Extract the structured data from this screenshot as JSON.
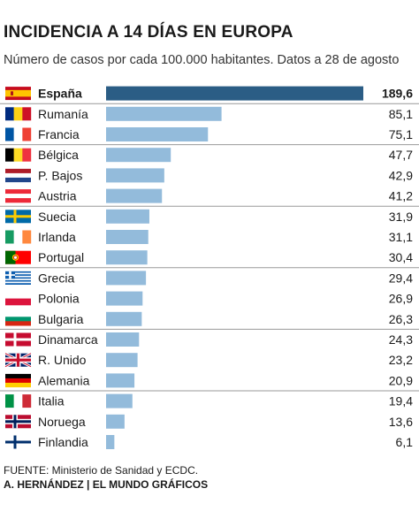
{
  "title": "INCIDENCIA A 14 DÍAS EN EUROPA",
  "subtitle": "Número de casos por cada 100.000 habitantes. Datos a 28 de agosto",
  "footer": {
    "source": "FUENTE: Ministerio de Sanidad y ECDC.",
    "credit": "A. HERNÁNDEZ | EL MUNDO GRÁFICOS"
  },
  "colors": {
    "highlight_bar": "#2b5d85",
    "bar": "#93bbdb",
    "separator": "#999999"
  },
  "chart_data": {
    "type": "bar",
    "orientation": "horizontal",
    "categories": [
      "España",
      "Rumanía",
      "Francia",
      "Bélgica",
      "P. Bajos",
      "Austria",
      "Suecia",
      "Irlanda",
      "Portugal",
      "Grecia",
      "Polonia",
      "Bulgaria",
      "Dinamarca",
      "R. Unido",
      "Alemania",
      "Italia",
      "Noruega",
      "Finlandia"
    ],
    "values": [
      189.6,
      85.1,
      75.1,
      47.7,
      42.9,
      41.2,
      31.9,
      31.1,
      30.4,
      29.4,
      26.9,
      26.3,
      24.3,
      23.2,
      20.9,
      19.4,
      13.6,
      6.1
    ],
    "value_labels": [
      "189,6",
      "85,1",
      "75,1",
      "47,7",
      "42,9",
      "41,2",
      "31,9",
      "31,1",
      "30,4",
      "29,4",
      "26,9",
      "26,3",
      "24,3",
      "23,2",
      "20,9",
      "19,4",
      "13,6",
      "6,1"
    ],
    "highlight": "España",
    "flag_icons": [
      "flag-spain-icon",
      "flag-romania-icon",
      "flag-france-icon",
      "flag-belgium-icon",
      "flag-netherlands-icon",
      "flag-austria-icon",
      "flag-sweden-icon",
      "flag-ireland-icon",
      "flag-portugal-icon",
      "flag-greece-icon",
      "flag-poland-icon",
      "flag-bulgaria-icon",
      "flag-denmark-icon",
      "flag-uk-icon",
      "flag-germany-icon",
      "flag-italy-icon",
      "flag-norway-icon",
      "flag-finland-icon"
    ],
    "group_separators_after": [
      0,
      2,
      5,
      8,
      11,
      14
    ],
    "xlim": [
      0,
      189.6
    ]
  }
}
